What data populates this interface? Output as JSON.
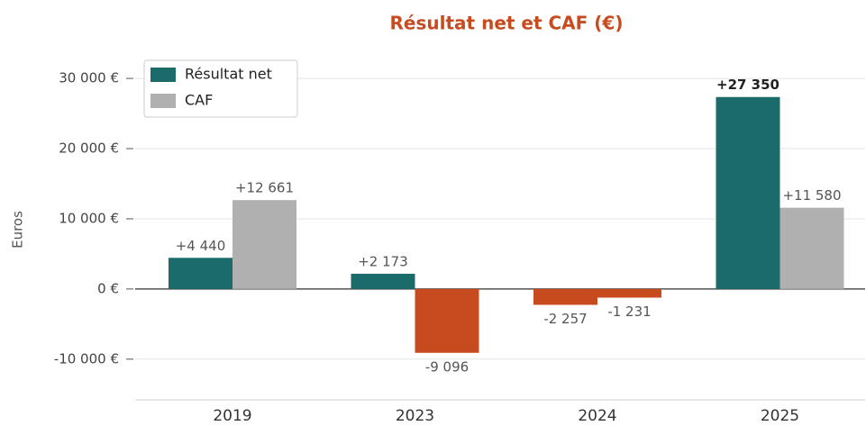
{
  "chart_data": {
    "type": "bar",
    "title": "Résultat net et CAF (€)",
    "y_label": "Euros",
    "categories": [
      "2019",
      "2023",
      "2024",
      "2025"
    ],
    "series": [
      {
        "name": "Résultat net",
        "color": "#1b6b6b",
        "values": [
          4440,
          2173,
          -2257,
          27350
        ],
        "value_labels": [
          "+4 440",
          "+2 173",
          "-2 257",
          "+27 350"
        ]
      },
      {
        "name": "CAF",
        "color": "#b0b0b0",
        "values": [
          12661,
          -9096,
          -1231,
          11580
        ],
        "value_labels": [
          "+12 661",
          "-9 096",
          "-1 231",
          "+11 580"
        ]
      }
    ],
    "negative_color": "#c84b1f",
    "ylim": [
      -15800,
      35400
    ],
    "yticks": [
      {
        "value": -10000,
        "label": "-10 000 €"
      },
      {
        "value": 0,
        "label": "0 €"
      },
      {
        "value": 10000,
        "label": "10 000 €"
      },
      {
        "value": 20000,
        "label": "20 000 €"
      },
      {
        "value": 30000,
        "label": "30 000 €"
      }
    ],
    "grid": true,
    "legend": "upper left"
  }
}
